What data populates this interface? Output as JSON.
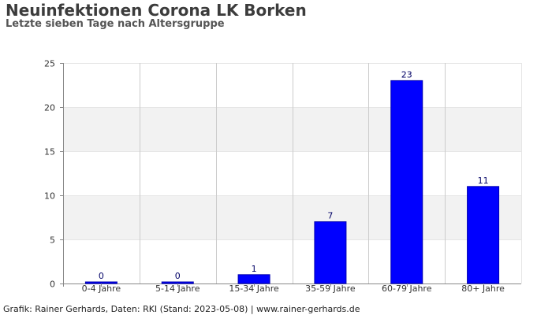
{
  "title": "Neuinfektionen Corona LK Borken",
  "subtitle": "Letzte sieben Tage nach Altersgruppe",
  "footer": "Grafik: Rainer Gerhards, Daten: RKI (Stand: 2023-05-08) | www.rainer-gerhards.de",
  "chart_data": {
    "type": "bar",
    "title": "Neuinfektionen Corona LK Borken",
    "subtitle": "Letzte sieben Tage nach Altersgruppe",
    "xlabel": "",
    "ylabel": "",
    "categories": [
      "0-4 Jahre",
      "5-14 Jahre",
      "15-34 Jahre",
      "35-59 Jahre",
      "60-79 Jahre",
      "80+ Jahre"
    ],
    "values": [
      0,
      0,
      1,
      7,
      23,
      11
    ],
    "ylim": [
      0,
      25
    ],
    "yticks": [
      0,
      5,
      10,
      15,
      20,
      25
    ],
    "bar_color": "#0000ff",
    "grid": true,
    "legend": "none"
  }
}
